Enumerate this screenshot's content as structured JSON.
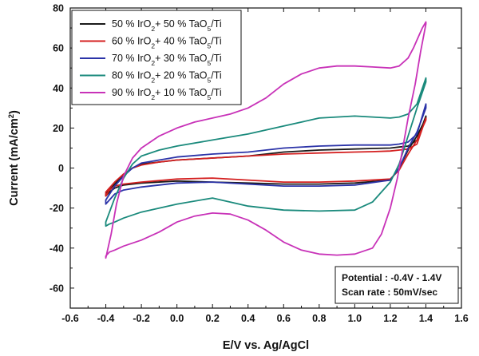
{
  "chart_data": {
    "type": "line",
    "xlabel": "E/V vs. Ag/AgCl",
    "ylabel": {
      "prefix": "Current (mA/cm",
      "sup": "2",
      "suffix": ")"
    },
    "xlim": [
      -0.6,
      1.6
    ],
    "ylim": [
      -70,
      80
    ],
    "x_ticks": [
      -0.6,
      -0.4,
      -0.2,
      0.0,
      0.2,
      0.4,
      0.6,
      0.8,
      1.0,
      1.2,
      1.4,
      1.6
    ],
    "x_tick_labels": [
      "-0.6",
      "-0.4",
      "-0.2",
      "0.0",
      "0.2",
      "0.4",
      "0.6",
      "0.8",
      "1.0",
      "1.2",
      "1.4",
      "1.6"
    ],
    "y_ticks": [
      -60,
      -40,
      -20,
      0,
      20,
      40,
      60,
      80
    ],
    "y_tick_labels": [
      "-60",
      "-40",
      "-20",
      "0",
      "20",
      "40",
      "60",
      "80"
    ],
    "grid": false,
    "legend_position": "top-left",
    "series": [
      {
        "legend": {
          "a": "50 % IrO",
          "a_sub": "2",
          "b": "+ 50 % TaO",
          "b_sub": "5",
          "c": "/Ti"
        },
        "color": "#1a1a1a",
        "x": [
          -0.4,
          -0.35,
          -0.3,
          -0.25,
          -0.2,
          -0.1,
          0.0,
          0.2,
          0.4,
          0.6,
          0.8,
          1.0,
          1.1,
          1.2,
          1.25,
          1.3,
          1.35,
          1.4,
          1.4,
          1.35,
          1.3,
          1.25,
          1.2,
          1.0,
          0.8,
          0.6,
          0.4,
          0.2,
          0.0,
          -0.2,
          -0.3,
          -0.35,
          -0.38,
          -0.4
        ],
        "y": [
          -13,
          -8,
          -3,
          0,
          2,
          3,
          4,
          5,
          6,
          8,
          9,
          9.5,
          9.8,
          10,
          10.5,
          11,
          14,
          26,
          25,
          16,
          9,
          0,
          -6,
          -7.5,
          -8,
          -8,
          -7.5,
          -7,
          -6.5,
          -7.5,
          -8.5,
          -10,
          -12,
          -14
        ]
      },
      {
        "legend": {
          "a": "60 % IrO",
          "a_sub": "2",
          "b": "+ 40 % TaO",
          "b_sub": "5",
          "c": "/Ti"
        },
        "color": "#d42020",
        "x": [
          -0.4,
          -0.35,
          -0.3,
          -0.25,
          -0.2,
          -0.1,
          0.0,
          0.2,
          0.4,
          0.6,
          0.8,
          1.0,
          1.1,
          1.2,
          1.25,
          1.3,
          1.35,
          1.4,
          1.4,
          1.35,
          1.3,
          1.25,
          1.2,
          1.0,
          0.8,
          0.6,
          0.4,
          0.2,
          0.0,
          -0.2,
          -0.3,
          -0.35,
          -0.38,
          -0.4
        ],
        "y": [
          -12,
          -7,
          -3,
          0,
          1.5,
          3,
          4,
          5,
          6,
          7,
          7.5,
          8,
          8.2,
          8.5,
          9,
          9.5,
          12,
          25,
          24,
          14,
          7,
          -1,
          -5.5,
          -6.5,
          -7,
          -7,
          -6,
          -5,
          -5.5,
          -7,
          -8,
          -9,
          -11,
          -14
        ]
      },
      {
        "legend": {
          "a": "70 % IrO",
          "a_sub": "2",
          "b": "+ 30 % TaO",
          "b_sub": "5",
          "c": "/Ti"
        },
        "color": "#2b33a8",
        "x": [
          -0.4,
          -0.35,
          -0.3,
          -0.25,
          -0.2,
          -0.1,
          0.0,
          0.2,
          0.4,
          0.6,
          0.8,
          1.0,
          1.1,
          1.2,
          1.25,
          1.3,
          1.35,
          1.4,
          1.4,
          1.35,
          1.3,
          1.25,
          1.2,
          1.0,
          0.8,
          0.6,
          0.4,
          0.2,
          0.0,
          -0.2,
          -0.3,
          -0.35,
          -0.38,
          -0.4
        ],
        "y": [
          -16,
          -9,
          -4,
          0,
          2.5,
          4,
          5.5,
          7,
          8,
          10,
          11,
          11.5,
          11.5,
          11.5,
          12,
          13,
          17,
          32,
          30,
          18,
          10,
          0,
          -6,
          -8.5,
          -9,
          -9,
          -8,
          -7,
          -7.5,
          -9.5,
          -11,
          -13,
          -16,
          -18
        ]
      },
      {
        "legend": {
          "a": "80 % IrO",
          "a_sub": "2",
          "b": "+ 20 % TaO",
          "b_sub": "5",
          "c": "/Ti"
        },
        "color": "#1a8a7c",
        "x": [
          -0.4,
          -0.35,
          -0.3,
          -0.25,
          -0.2,
          -0.1,
          0.0,
          0.2,
          0.4,
          0.6,
          0.8,
          1.0,
          1.1,
          1.2,
          1.25,
          1.3,
          1.35,
          1.4,
          1.4,
          1.35,
          1.3,
          1.25,
          1.2,
          1.1,
          1.0,
          0.8,
          0.6,
          0.4,
          0.2,
          0.0,
          -0.2,
          -0.3,
          -0.35,
          -0.38,
          -0.4
        ],
        "y": [
          -27,
          -15,
          -5,
          2,
          6,
          9,
          11,
          14,
          17,
          21,
          25,
          26,
          25.5,
          25,
          25.5,
          27,
          32,
          45,
          43,
          30,
          16,
          2,
          -7,
          -17,
          -21,
          -21.5,
          -21,
          -19,
          -15,
          -18,
          -22,
          -25,
          -27,
          -28,
          -29
        ]
      },
      {
        "legend": {
          "a": "90 % IrO",
          "a_sub": "2",
          "b": "+ 10 % TaO",
          "b_sub": "5",
          "c": "/Ti"
        },
        "color": "#c832b8",
        "x": [
          -0.4,
          -0.37,
          -0.34,
          -0.3,
          -0.25,
          -0.2,
          -0.1,
          0.0,
          0.1,
          0.2,
          0.3,
          0.4,
          0.5,
          0.6,
          0.7,
          0.8,
          0.9,
          1.0,
          1.1,
          1.2,
          1.25,
          1.3,
          1.33,
          1.36,
          1.38,
          1.4,
          1.4,
          1.37,
          1.34,
          1.3,
          1.27,
          1.24,
          1.2,
          1.15,
          1.1,
          1.0,
          0.9,
          0.8,
          0.7,
          0.6,
          0.5,
          0.4,
          0.3,
          0.2,
          0.1,
          0.0,
          -0.1,
          -0.2,
          -0.3,
          -0.35,
          -0.38,
          -0.4
        ],
        "y": [
          -45,
          -33,
          -18,
          -4,
          5,
          10,
          16,
          20,
          23,
          25,
          27,
          30,
          35,
          42,
          47,
          50,
          51,
          51,
          50.5,
          50,
          51,
          55,
          60,
          66,
          70,
          73,
          72,
          58,
          42,
          25,
          10,
          -5,
          -20,
          -33,
          -40,
          -43,
          -43.5,
          -43,
          -41,
          -37,
          -31,
          -26,
          -23,
          -22.5,
          -24,
          -27,
          -32,
          -36,
          -39,
          -41,
          -42,
          -44
        ]
      }
    ],
    "annotation": {
      "lines": [
        "Potential : -0.4V - 1.4V",
        "Scan rate : 50mV/sec"
      ],
      "position": "bottom-right"
    }
  }
}
